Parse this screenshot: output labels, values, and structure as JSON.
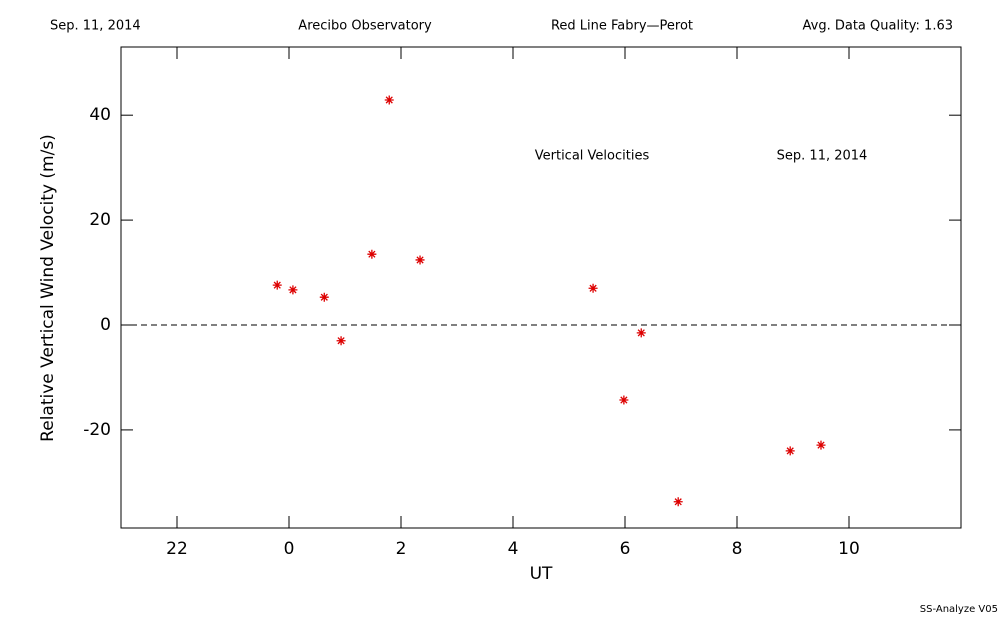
{
  "chart_data": {
    "type": "scatter",
    "header": [
      "Sep. 11, 2014",
      "Arecibo Observatory",
      "Red Line Fabry—Perot",
      "Avg. Data Quality: 1.63"
    ],
    "annotations": [
      "Vertical Velocities",
      "Sep. 11, 2014"
    ],
    "footer": "SS-Analyze V05",
    "xlabel": "UT",
    "ylabel": "Relative Vertical Wind Velocity (m/s)",
    "x": [
      -0.21,
      0.07,
      0.63,
      0.93,
      1.48,
      1.79,
      2.34,
      5.43,
      5.98,
      6.29,
      6.95,
      8.95,
      9.5
    ],
    "series": [
      {
        "color": "#dd0000",
        "values": [
          7.6,
          6.7,
          5.3,
          -3.0,
          13.5,
          42.9,
          12.4,
          7.0,
          -14.3,
          -1.5,
          -33.7,
          -24.0,
          -22.9
        ]
      }
    ],
    "xlim": [
      -3,
      12
    ],
    "ylim": [
      -38.7,
      53
    ],
    "xticks": [
      {
        "value": -2,
        "label": "22"
      },
      0,
      2,
      4,
      6,
      8,
      10
    ],
    "yticks": [
      -20,
      0,
      20,
      40
    ],
    "hline": 0
  }
}
